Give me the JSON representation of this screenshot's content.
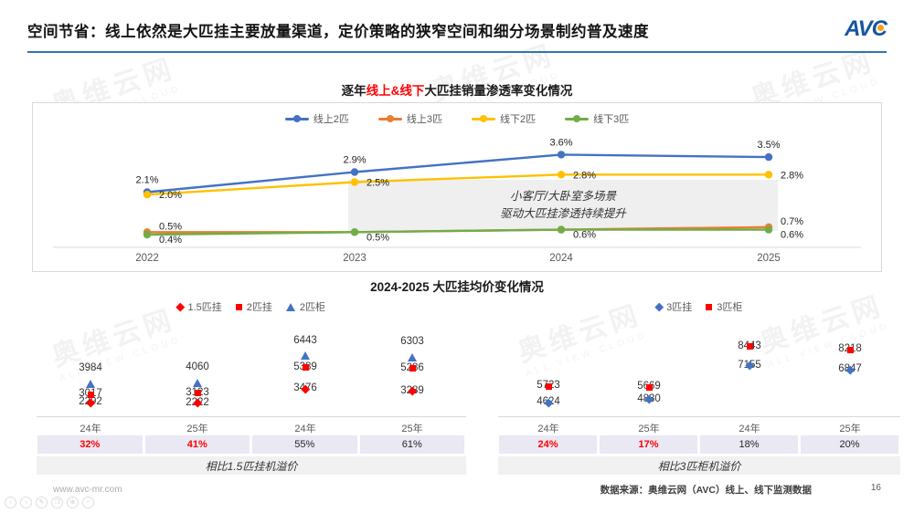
{
  "header": {
    "title": "空间节省：线上依然是大匹挂主要放量渠道，定价策略的狭窄空间和细分场景制约普及速度",
    "logo": "AVC"
  },
  "watermark": {
    "cn": "奥维云网",
    "en": "ALL VIEW CLOUD"
  },
  "colors": {
    "brand_blue": "#17559E",
    "rule_blue": "#2E74B5",
    "highlight_red": "#FF0000",
    "series_blue": "#4472C4",
    "series_orange": "#ED7D31",
    "series_yellow": "#FFC000",
    "series_green": "#70AD47"
  },
  "price_section": {
    "title": "2024-2025 大匹挂均价变化情况"
  },
  "chart_data": [
    {
      "type": "line",
      "title": "逐年线上&线下大匹挂销量渗透率变化情况",
      "title_parts": {
        "prefix": "逐年",
        "highlight": "线上&线下",
        "suffix": "大匹挂销量渗透率变化情况"
      },
      "categories": [
        "2022",
        "2023",
        "2024",
        "2025"
      ],
      "series": [
        {
          "name": "线上2匹",
          "color": "#4472C4",
          "values": [
            2.1,
            2.9,
            3.6,
            3.5
          ],
          "labels": [
            "2.1%",
            "2.9%",
            "3.6%",
            "3.5%"
          ]
        },
        {
          "name": "线上3匹",
          "color": "#ED7D31",
          "values": [
            0.5,
            0.5,
            0.6,
            0.7
          ],
          "labels": [
            "0.5%",
            "",
            "",
            "0.7%"
          ]
        },
        {
          "name": "线下2匹",
          "color": "#FFC000",
          "values": [
            2.0,
            2.5,
            2.8,
            2.8
          ],
          "labels": [
            "2.0%",
            "2.5%",
            "2.8%",
            "2.8%"
          ]
        },
        {
          "name": "线下3匹",
          "color": "#70AD47",
          "values": [
            0.4,
            0.5,
            0.6,
            0.6
          ],
          "labels": [
            "0.4%",
            "0.5%",
            "0.6%",
            "0.6%"
          ]
        }
      ],
      "unit": "%",
      "ylim": [
        0,
        4
      ],
      "grid": false,
      "legend_position": "top",
      "annotation_lines": [
        "小客厅/大卧室多场景",
        "驱动大匹挂渗透持续提升"
      ]
    },
    {
      "type": "scatter",
      "title": "2024-2025 大匹挂均价变化情况（2匹）",
      "categories": [
        "24年",
        "25年",
        "24年",
        "25年"
      ],
      "series": [
        {
          "name": "1.5匹挂",
          "marker": "diamond",
          "color": "#FF0000",
          "values": [
            2292,
            2222,
            3476,
            3289
          ]
        },
        {
          "name": "2匹挂",
          "marker": "square",
          "color": "#FF0000",
          "values": [
            3017,
            3123,
            5389,
            5286
          ]
        },
        {
          "name": "2匹柜",
          "marker": "triangle",
          "color": "#4472C4",
          "values": [
            3984,
            4060,
            6443,
            6303
          ]
        }
      ],
      "premium": {
        "values": [
          "32%",
          "41%",
          "55%",
          "61%"
        ],
        "red": [
          true,
          true,
          false,
          false
        ]
      },
      "caption": "相比1.5匹挂机溢价"
    },
    {
      "type": "scatter",
      "title": "2024-2025 大匹挂均价变化情况（3匹）",
      "categories": [
        "24年",
        "25年",
        "24年",
        "25年"
      ],
      "series": [
        {
          "name": "3匹挂",
          "marker": "diamond",
          "color": "#4472C4",
          "values": [
            4624,
            4830,
            7155,
            6847
          ]
        },
        {
          "name": "3匹柜",
          "marker": "square",
          "color": "#FF0000",
          "values": [
            5723,
            5669,
            8443,
            8218
          ]
        }
      ],
      "premium": {
        "values": [
          "24%",
          "17%",
          "18%",
          "20%"
        ],
        "red": [
          true,
          true,
          false,
          false
        ]
      },
      "caption": "相比3匹柜机溢价"
    }
  ],
  "footer": {
    "site": "www.avc-mr.com",
    "source": "数据来源：奥维云网（AVC）线上、线下监测数据",
    "page": "16",
    "icons": [
      "prev",
      "next",
      "edit",
      "copy",
      "zoom",
      "more"
    ]
  }
}
